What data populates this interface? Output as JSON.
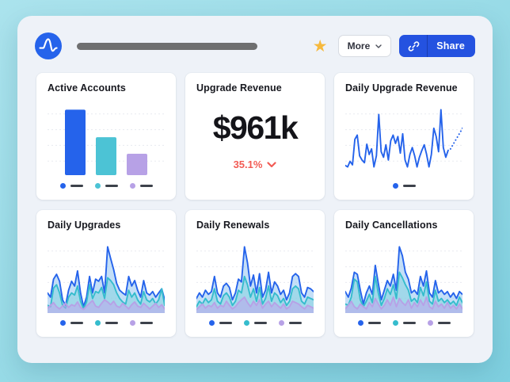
{
  "theme": {
    "accent_blue": "#2563eb",
    "teal": "#4cc3d5",
    "purple": "#b7a1e6",
    "negative_red": "#f25b54",
    "star_gold": "#f6b93d",
    "share_button_bg": "#2452e0",
    "gridline": "#e8eaef",
    "legend_dash": "#3d424b"
  },
  "header": {
    "logo_icon": "amplitude-logo",
    "title_placeholder": "redacted-title-bar",
    "favorite_icon": "star-icon",
    "star_glyph": "★",
    "more_label": "More",
    "more_chevron_icon": "chevron-down-icon",
    "share_label": "Share",
    "share_link_icon": "link-icon"
  },
  "cards": [
    {
      "title": "Active Accounts",
      "type": "bar",
      "chart": {
        "type": "bar",
        "ymax": 100,
        "grid": true,
        "series": [
          {
            "color": "#2563eb",
            "value": 95
          },
          {
            "color": "#4cc3d5",
            "value": 55
          },
          {
            "color": "#b7a1e6",
            "value": 31
          }
        ]
      }
    },
    {
      "title": "Upgrade Revenue",
      "type": "number",
      "value": "$961k",
      "delta": "35.1%",
      "delta_direction": "down",
      "delta_color": "#f25b54"
    },
    {
      "title": "Daily Upgrade Revenue",
      "type": "line",
      "chart": {
        "type": "line",
        "ymax": 100,
        "grid": true,
        "series": [
          {
            "color": "#2563eb",
            "values": [
              14,
              12,
              20,
              15,
              52,
              58,
              28,
              22,
              18,
              45,
              30,
              38,
              12,
              28,
              88,
              34,
              26,
              44,
              22,
              50,
              58,
              46,
              56,
              32,
              60,
              22,
              12,
              30,
              40,
              28,
              12,
              26,
              36,
              44,
              30,
              12,
              30,
              68,
              56,
              34,
              95,
              40,
              26,
              36
            ],
            "forecast": [
              38,
              44,
              50,
              56,
              62,
              68
            ]
          }
        ]
      }
    },
    {
      "title": "Daily Upgrades",
      "type": "area",
      "chart": {
        "type": "area",
        "ymax": 100,
        "grid": true,
        "series": [
          {
            "color": "#2563eb",
            "fill": "rgba(148,196,240,0.55)",
            "values": [
              28,
              22,
              48,
              55,
              45,
              18,
              10,
              32,
              45,
              38,
              60,
              28,
              8,
              22,
              52,
              28,
              48,
              45,
              52,
              28,
              95,
              78,
              62,
              42,
              32,
              28,
              25,
              52,
              38,
              46,
              32,
              22,
              46,
              28,
              25,
              30,
              22,
              28,
              34,
              18
            ]
          },
          {
            "color": "#35bccd",
            "fill": "rgba(120,208,218,0.45)",
            "values": [
              10,
              8,
              35,
              40,
              28,
              10,
              6,
              22,
              28,
              25,
              38,
              16,
              5,
              15,
              40,
              20,
              30,
              28,
              36,
              20,
              50,
              46,
              40,
              28,
              20,
              15,
              12,
              32,
              22,
              28,
              18,
              12,
              30,
              18,
              15,
              20,
              12,
              18,
              34,
              10
            ]
          },
          {
            "color": "#b7a1e6",
            "fill": "rgba(190,165,235,0.55)",
            "values": [
              6,
              10,
              14,
              8,
              5,
              9,
              13,
              7,
              11,
              9,
              15,
              7,
              4,
              9,
              13,
              17,
              9,
              7,
              13,
              18,
              15,
              11,
              16,
              9,
              7,
              13,
              9,
              5,
              11,
              15,
              9,
              7,
              13,
              9,
              5,
              9,
              13,
              7,
              11,
              5
            ]
          }
        ]
      }
    },
    {
      "title": "Daily Renewals",
      "type": "area",
      "chart": {
        "type": "area",
        "ymax": 100,
        "grid": true,
        "series": [
          {
            "color": "#2563eb",
            "fill": "rgba(148,196,240,0.55)",
            "values": [
              20,
              28,
              22,
              32,
              26,
              30,
              52,
              28,
              22,
              38,
              42,
              36,
              18,
              28,
              48,
              44,
              95,
              72,
              38,
              54,
              28,
              56,
              22,
              32,
              58,
              28,
              44,
              38,
              26,
              32,
              18,
              28,
              52,
              56,
              52,
              28,
              22,
              36,
              34,
              30
            ]
          },
          {
            "color": "#35bccd",
            "fill": "rgba(120,208,218,0.45)",
            "values": [
              8,
              16,
              12,
              20,
              14,
              18,
              34,
              16,
              12,
              24,
              28,
              22,
              10,
              16,
              32,
              28,
              52,
              40,
              22,
              34,
              16,
              36,
              12,
              20,
              38,
              16,
              28,
              24,
              14,
              20,
              10,
              16,
              34,
              38,
              34,
              16,
              12,
              22,
              20,
              18
            ]
          },
          {
            "color": "#b7a1e6",
            "fill": "rgba(190,165,235,0.55)",
            "values": [
              4,
              8,
              12,
              6,
              10,
              8,
              14,
              6,
              10,
              8,
              16,
              10,
              5,
              8,
              14,
              18,
              22,
              14,
              8,
              16,
              10,
              18,
              6,
              12,
              16,
              8,
              14,
              10,
              6,
              12,
              5,
              8,
              16,
              14,
              12,
              8,
              5,
              10,
              8,
              6
            ]
          }
        ]
      }
    },
    {
      "title": "Daily Cancellations",
      "type": "area",
      "chart": {
        "type": "area",
        "ymax": 100,
        "grid": true,
        "series": [
          {
            "color": "#2563eb",
            "fill": "rgba(148,196,240,0.55)",
            "values": [
              30,
              22,
              35,
              58,
              55,
              32,
              12,
              28,
              38,
              26,
              68,
              42,
              18,
              32,
              46,
              38,
              55,
              32,
              95,
              82,
              58,
              48,
              28,
              32,
              26,
              52,
              38,
              60,
              28,
              22,
              46,
              28,
              32,
              26,
              30,
              22,
              28,
              20,
              30,
              26
            ]
          },
          {
            "color": "#35bccd",
            "fill": "rgba(120,208,218,0.45)",
            "values": [
              12,
              10,
              22,
              48,
              44,
              18,
              8,
              16,
              26,
              14,
              52,
              28,
              10,
              20,
              34,
              26,
              40,
              20,
              58,
              50,
              40,
              32,
              16,
              20,
              14,
              36,
              24,
              44,
              16,
              12,
              32,
              16,
              20,
              14,
              18,
              12,
              16,
              10,
              22,
              14
            ]
          },
          {
            "color": "#b7a1e6",
            "fill": "rgba(190,165,235,0.55)",
            "values": [
              5,
              10,
              16,
              8,
              5,
              12,
              8,
              5,
              14,
              8,
              20,
              12,
              5,
              10,
              18,
              10,
              22,
              8,
              20,
              14,
              10,
              18,
              6,
              14,
              8,
              18,
              10,
              22,
              8,
              5,
              16,
              8,
              12,
              6,
              14,
              6,
              10,
              5,
              12,
              5
            ]
          }
        ]
      }
    }
  ]
}
